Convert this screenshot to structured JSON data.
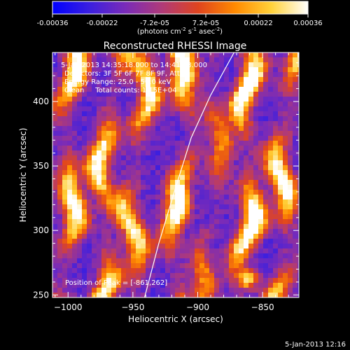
{
  "chart_data": {
    "type": "heatmap",
    "title": "Reconstructed RHESSI Image",
    "xlabel": "Heliocentric X (arcsec)",
    "ylabel": "Heliocentric Y (arcsec)",
    "xlim": [
      -1012,
      -822
    ],
    "ylim": [
      248,
      438
    ],
    "x_ticks": [
      -1000,
      -950,
      -900,
      -850
    ],
    "x_tick_labels": [
      "−1000",
      "−950",
      "−900",
      "−850"
    ],
    "y_ticks": [
      250,
      300,
      350,
      400
    ],
    "y_tick_labels": [
      "250",
      "300",
      "350",
      "400"
    ],
    "colorbar": {
      "range": [
        -0.00036,
        0.00036
      ],
      "ticks": [
        -0.00036,
        -0.00022,
        -7.2e-05,
        7.2e-05,
        0.00022,
        0.00036
      ],
      "tick_labels": [
        "-0.00036",
        "-0.00022",
        "-7.2e-05",
        "7.2e-05",
        "0.00022",
        "0.00036"
      ],
      "unit_prefix": "(photons cm",
      "unit_exp1": "-2",
      "unit_mid": " s",
      "unit_exp2": "-1",
      "unit_mid2": " asec",
      "unit_exp3": "-2",
      "unit_suffix": ")",
      "colors": [
        "#0000ff",
        "#3a1fe0",
        "#7a2bb8",
        "#b03a78",
        "#e0441e",
        "#ff8a00",
        "#ffd23a",
        "#ffffff"
      ]
    },
    "annotations": [
      "5-Jan-2013 14:35:18.000 to 14:41:18.000",
      "Detectors: 3F 5F 6F 7F 8F 9F, Att 0",
      "Energy Range: 25.0 - 50.0 keV",
      "Clean     Total counts: 1.15E+04"
    ],
    "peak_label": "Position of Peak = [-861,262]",
    "peak": [
      -861,
      262
    ],
    "limb_curve": [
      [
        -941,
        248
      ],
      [
        -930,
        290
      ],
      [
        -918,
        330
      ],
      [
        -905,
        372
      ],
      [
        -890,
        405
      ],
      [
        -872,
        438
      ]
    ],
    "ridges": [
      {
        "x": -1000,
        "amp": 0.9
      },
      {
        "x": -970,
        "amp": 0.85
      },
      {
        "x": -948,
        "amp": 0.8
      },
      {
        "x": -913,
        "amp": 0.95
      },
      {
        "x": -888,
        "amp": 0.5
      },
      {
        "x": -862,
        "amp": 1.0
      },
      {
        "x": -833,
        "amp": 0.9
      }
    ]
  },
  "timestamp": "5-Jan-2013 12:16"
}
